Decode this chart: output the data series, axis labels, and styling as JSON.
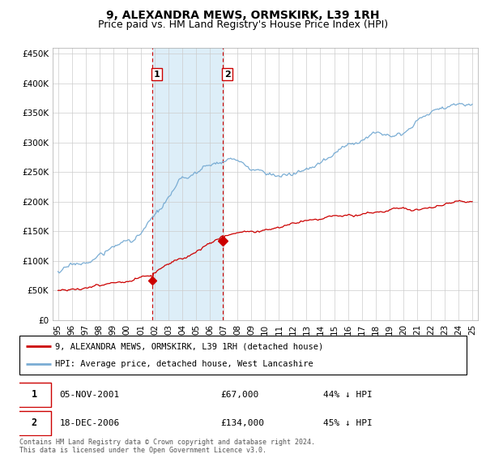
{
  "title": "9, ALEXANDRA MEWS, ORMSKIRK, L39 1RH",
  "subtitle": "Price paid vs. HM Land Registry's House Price Index (HPI)",
  "ylim": [
    0,
    460000
  ],
  "yticks": [
    0,
    50000,
    100000,
    150000,
    200000,
    250000,
    300000,
    350000,
    400000,
    450000
  ],
  "ytick_labels": [
    "£0",
    "£50K",
    "£100K",
    "£150K",
    "£200K",
    "£250K",
    "£300K",
    "£350K",
    "£400K",
    "£450K"
  ],
  "x_start_year": 1995,
  "x_end_year": 2025,
  "purchase1_date": 2001.85,
  "purchase1_price": 67000,
  "purchase1_label": "1",
  "purchase2_date": 2006.96,
  "purchase2_price": 134000,
  "purchase2_label": "2",
  "red_color": "#cc0000",
  "blue_color": "#7aadd4",
  "highlight_color": "#ddeef8",
  "vline_color": "#cc0000",
  "grid_color": "#cccccc",
  "bg_color": "#ffffff",
  "legend_line1": "9, ALEXANDRA MEWS, ORMSKIRK, L39 1RH (detached house)",
  "legend_line2": "HPI: Average price, detached house, West Lancashire",
  "table_row1": [
    "1",
    "05-NOV-2001",
    "£67,000",
    "44% ↓ HPI"
  ],
  "table_row2": [
    "2",
    "18-DEC-2006",
    "£134,000",
    "45% ↓ HPI"
  ],
  "footnote": "Contains HM Land Registry data © Crown copyright and database right 2024.\nThis data is licensed under the Open Government Licence v3.0.",
  "title_fontsize": 10,
  "subtitle_fontsize": 9,
  "tick_fontsize": 7.5
}
